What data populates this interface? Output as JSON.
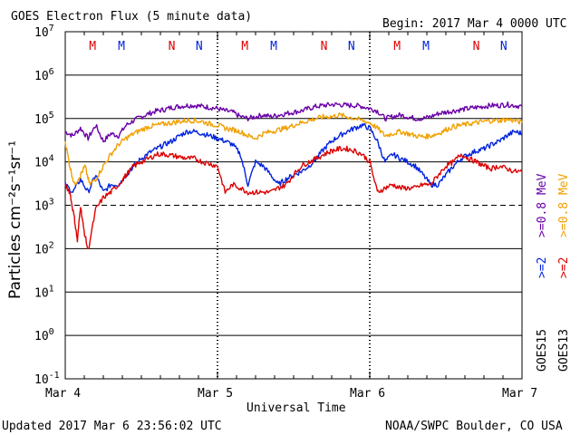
{
  "header": {
    "title": "GOES Electron Flux (5 minute data)",
    "begin": "Begin: 2017 Mar 4 0000 UTC"
  },
  "footer": {
    "updated": "Updated 2017 Mar  6 23:56:02 UTC",
    "credit": "NOAA/SWPC Boulder, CO USA"
  },
  "axes": {
    "ylabel": "Particles cm⁻²s⁻¹sr⁻¹",
    "xlabel": "Universal Time"
  },
  "legend": {
    "goes15_label": "GOES15",
    "goes13_label": "GOES13",
    "goes15_08": ">=0.8 MeV",
    "goes15_2": ">=2",
    "goes13_08": ">=0.8 MeV",
    "goes13_2": ">=2"
  },
  "colors": {
    "goes15_08": "#6a00a8",
    "goes15_2": "#0022dd",
    "goes13_08": "#f0a000",
    "goes13_2": "#dd0000",
    "marker_red": "#dd0000",
    "marker_blue": "#0022dd"
  },
  "chart_data": {
    "type": "line",
    "y_scale": "log",
    "ylim": [
      0.1,
      10000000
    ],
    "xlim_days": [
      0,
      3
    ],
    "x_ticks": [
      "Mar 4",
      "Mar 5",
      "Mar 6",
      "Mar 7"
    ],
    "y_ticks": [
      {
        "base": "10",
        "exp": "7"
      },
      {
        "base": "10",
        "exp": "6"
      },
      {
        "base": "10",
        "exp": "5"
      },
      {
        "base": "10",
        "exp": "4"
      },
      {
        "base": "10",
        "exp": "3"
      },
      {
        "base": "10",
        "exp": "2"
      },
      {
        "base": "10",
        "exp": "1"
      },
      {
        "base": "10",
        "exp": "0"
      },
      {
        "base": "10",
        "exp": "-1"
      }
    ],
    "threshold_line": 1000,
    "markers": [
      {
        "text": "M",
        "color": "red",
        "day": 0.18
      },
      {
        "text": "M",
        "color": "blue",
        "day": 0.37
      },
      {
        "text": "N",
        "color": "red",
        "day": 0.7
      },
      {
        "text": "N",
        "color": "blue",
        "day": 0.88
      },
      {
        "text": "M",
        "color": "red",
        "day": 1.18
      },
      {
        "text": "M",
        "color": "blue",
        "day": 1.37
      },
      {
        "text": "N",
        "color": "red",
        "day": 1.7
      },
      {
        "text": "N",
        "color": "blue",
        "day": 1.88
      },
      {
        "text": "M",
        "color": "red",
        "day": 2.18
      },
      {
        "text": "M",
        "color": "blue",
        "day": 2.37
      },
      {
        "text": "N",
        "color": "red",
        "day": 2.7
      },
      {
        "text": "N",
        "color": "blue",
        "day": 2.88
      }
    ],
    "series": [
      {
        "name": "GOES15 >=0.8 MeV",
        "color": "#6a00a8",
        "x": [
          0,
          0.05,
          0.1,
          0.15,
          0.2,
          0.25,
          0.3,
          0.35,
          0.4,
          0.45,
          0.5,
          0.55,
          0.6,
          0.65,
          0.7,
          0.75,
          0.8,
          0.85,
          0.9,
          0.95,
          1.0,
          1.05,
          1.1,
          1.15,
          1.2,
          1.25,
          1.3,
          1.35,
          1.4,
          1.45,
          1.5,
          1.55,
          1.6,
          1.65,
          1.7,
          1.75,
          1.8,
          1.85,
          1.9,
          1.95,
          2.0,
          2.05,
          2.1,
          2.15,
          2.2,
          2.25,
          2.3,
          2.35,
          2.4,
          2.45,
          2.5,
          2.55,
          2.6,
          2.65,
          2.7,
          2.75,
          2.8,
          2.85,
          2.9,
          2.95,
          3.0
        ],
        "y": [
          50000,
          40000,
          60000,
          35000,
          70000,
          30000,
          45000,
          40000,
          70000,
          90000,
          110000,
          130000,
          150000,
          160000,
          180000,
          190000,
          200000,
          200000,
          190000,
          180000,
          170000,
          150000,
          140000,
          110000,
          100000,
          110000,
          120000,
          110000,
          120000,
          130000,
          140000,
          150000,
          170000,
          190000,
          200000,
          210000,
          210000,
          200000,
          200000,
          190000,
          170000,
          150000,
          100000,
          110000,
          120000,
          110000,
          100000,
          100000,
          110000,
          130000,
          140000,
          150000,
          160000,
          170000,
          180000,
          190000,
          200000,
          200000,
          210000,
          200000,
          190000
        ]
      },
      {
        "name": "GOES15 >=2 MeV",
        "color": "#0022dd",
        "x": [
          0,
          0.05,
          0.1,
          0.15,
          0.2,
          0.25,
          0.3,
          0.35,
          0.4,
          0.45,
          0.5,
          0.55,
          0.6,
          0.65,
          0.7,
          0.75,
          0.8,
          0.85,
          0.9,
          0.95,
          1.0,
          1.05,
          1.1,
          1.15,
          1.2,
          1.25,
          1.3,
          1.35,
          1.4,
          1.45,
          1.5,
          1.55,
          1.6,
          1.65,
          1.7,
          1.75,
          1.8,
          1.85,
          1.9,
          1.95,
          2.0,
          2.05,
          2.1,
          2.15,
          2.2,
          2.25,
          2.3,
          2.35,
          2.4,
          2.45,
          2.5,
          2.55,
          2.6,
          2.65,
          2.7,
          2.75,
          2.8,
          2.85,
          2.9,
          2.95,
          3.0
        ],
        "y": [
          3000,
          2000,
          4000,
          2000,
          5000,
          2000,
          3000,
          3000,
          5000,
          8000,
          12000,
          16000,
          20000,
          25000,
          30000,
          40000,
          50000,
          50000,
          45000,
          40000,
          35000,
          30000,
          25000,
          15000,
          3000,
          10000,
          8000,
          5000,
          3000,
          4000,
          5000,
          6000,
          8000,
          12000,
          20000,
          30000,
          40000,
          50000,
          60000,
          70000,
          60000,
          30000,
          10000,
          15000,
          12000,
          10000,
          8000,
          5000,
          3000,
          3000,
          5000,
          8000,
          12000,
          15000,
          18000,
          20000,
          25000,
          30000,
          40000,
          50000,
          45000
        ]
      },
      {
        "name": "GOES13 >=0.8 MeV",
        "color": "#f0a000",
        "x": [
          0,
          0.03,
          0.06,
          0.1,
          0.13,
          0.16,
          0.2,
          0.25,
          0.3,
          0.35,
          0.4,
          0.45,
          0.5,
          0.55,
          0.6,
          0.65,
          0.7,
          0.75,
          0.8,
          0.85,
          0.9,
          0.95,
          1.0,
          1.05,
          1.1,
          1.15,
          1.2,
          1.25,
          1.3,
          1.35,
          1.4,
          1.45,
          1.5,
          1.55,
          1.6,
          1.65,
          1.7,
          1.75,
          1.8,
          1.85,
          1.9,
          1.95,
          2.0,
          2.05,
          2.1,
          2.15,
          2.2,
          2.25,
          2.3,
          2.35,
          2.4,
          2.45,
          2.5,
          2.55,
          2.6,
          2.65,
          2.7,
          2.75,
          2.8,
          2.85,
          2.9,
          2.95,
          3.0
        ],
        "y": [
          30000,
          8000,
          3000,
          5000,
          8000,
          3000,
          4000,
          8000,
          15000,
          25000,
          35000,
          45000,
          55000,
          65000,
          70000,
          75000,
          80000,
          85000,
          90000,
          90000,
          85000,
          75000,
          70000,
          60000,
          55000,
          50000,
          40000,
          35000,
          45000,
          50000,
          55000,
          60000,
          70000,
          80000,
          90000,
          100000,
          110000,
          110000,
          120000,
          110000,
          100000,
          90000,
          80000,
          60000,
          40000,
          45000,
          50000,
          45000,
          40000,
          38000,
          40000,
          45000,
          55000,
          65000,
          70000,
          75000,
          80000,
          85000,
          90000,
          90000,
          95000,
          90000,
          80000
        ]
      },
      {
        "name": "GOES13 >=2 MeV",
        "color": "#dd0000",
        "x": [
          0,
          0.03,
          0.06,
          0.08,
          0.1,
          0.12,
          0.15,
          0.2,
          0.25,
          0.3,
          0.35,
          0.4,
          0.45,
          0.5,
          0.55,
          0.6,
          0.65,
          0.7,
          0.75,
          0.8,
          0.85,
          0.9,
          0.95,
          1.0,
          1.05,
          1.1,
          1.15,
          1.2,
          1.25,
          1.3,
          1.35,
          1.4,
          1.45,
          1.5,
          1.55,
          1.6,
          1.65,
          1.7,
          1.75,
          1.8,
          1.85,
          1.9,
          1.95,
          2.0,
          2.05,
          2.1,
          2.15,
          2.2,
          2.25,
          2.3,
          2.35,
          2.4,
          2.45,
          2.5,
          2.55,
          2.6,
          2.65,
          2.7,
          2.75,
          2.8,
          2.85,
          2.9,
          2.95,
          3.0
        ],
        "y": [
          3000,
          2000,
          500,
          150,
          1000,
          300,
          90,
          800,
          1500,
          2000,
          3000,
          5000,
          8000,
          10000,
          12000,
          15000,
          15000,
          14000,
          13000,
          12000,
          12000,
          10000,
          9000,
          8000,
          2000,
          3000,
          2500,
          2000,
          2000,
          2000,
          2000,
          2500,
          3000,
          5000,
          8000,
          10000,
          12000,
          15000,
          18000,
          20000,
          20000,
          18000,
          15000,
          10000,
          2000,
          2500,
          3000,
          2500,
          2500,
          2500,
          3000,
          3000,
          5000,
          8000,
          10000,
          15000,
          12000,
          10000,
          8000,
          7000,
          8000,
          7000,
          6000,
          6000
        ]
      }
    ]
  }
}
